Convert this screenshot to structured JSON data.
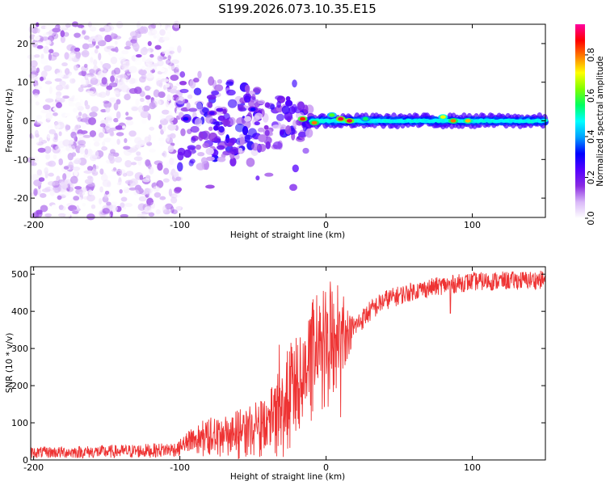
{
  "title": "S199.2026.073.10.35.E15",
  "chart_data": [
    {
      "type": "heatmap",
      "xlabel": "Height of straight line (km)",
      "ylabel": "Frequency (Hz)",
      "xlim": [
        -202,
        150
      ],
      "ylim": [
        -25,
        25
      ],
      "xticks": [
        -200,
        -100,
        0,
        100
      ],
      "xtick_labels": [
        "-200",
        "-100",
        "0",
        "100"
      ],
      "yticks": [
        -20,
        -10,
        0,
        10,
        20
      ],
      "ytick_labels": [
        "-20",
        "-10",
        "0",
        "10",
        "20"
      ],
      "colorbar": {
        "label": "Normalized spectral amplitude",
        "range": [
          0,
          0.95
        ],
        "ticks": [
          0,
          0.2,
          0.4,
          0.6,
          0.8
        ],
        "tick_labels": [
          "0.0",
          "0.2",
          "0.4",
          "0.6",
          "0.8"
        ],
        "colormap": [
          "#ffffff",
          "#d9b8f8",
          "#8a2be2",
          "#5500ff",
          "#0000ff",
          "#00a0ff",
          "#00ffff",
          "#00ff60",
          "#80ff00",
          "#ffff00",
          "#ff8000",
          "#ff0000",
          "#ff00a0"
        ]
      },
      "regions": [
        {
          "name": "scattered-noise",
          "x_range": [
            -202,
            -100
          ],
          "freq_range": [
            -25,
            25
          ],
          "amplitude_range": [
            0.0,
            0.15
          ]
        },
        {
          "name": "sparse-transition",
          "x_range": [
            -100,
            -10
          ],
          "freq_range": [
            -18,
            10
          ],
          "amplitude_range": [
            0.05,
            0.3
          ]
        },
        {
          "name": "tone-line",
          "x_range": [
            -10,
            150
          ],
          "freq_center": 0,
          "bandwidth_hz": 4,
          "amplitude_range": [
            0.3,
            0.9
          ]
        }
      ],
      "hotspots": [
        {
          "x": -96,
          "f": 0.5,
          "a": 0.3
        },
        {
          "x": -78,
          "f": 2,
          "a": 0.25
        },
        {
          "x": -50,
          "f": 3,
          "a": 0.3
        },
        {
          "x": -16,
          "f": 0.5,
          "a": 0.85
        },
        {
          "x": -8,
          "f": -0.5,
          "a": 0.8
        },
        {
          "x": 4,
          "f": 1.5,
          "a": 0.6
        },
        {
          "x": 10,
          "f": 0.5,
          "a": 0.9
        },
        {
          "x": 16,
          "f": 0,
          "a": 0.9
        },
        {
          "x": 27,
          "f": 0.5,
          "a": 0.55
        },
        {
          "x": 80,
          "f": 1,
          "a": 0.7
        },
        {
          "x": 87,
          "f": 0,
          "a": 0.8
        },
        {
          "x": 97,
          "f": 0,
          "a": 0.75
        }
      ]
    },
    {
      "type": "line",
      "xlabel": "Height of straight line (km)",
      "ylabel": "SNR (10 * v/v)",
      "xlim": [
        -202,
        150
      ],
      "ylim": [
        0,
        520
      ],
      "xticks": [
        -200,
        -100,
        0,
        100
      ],
      "xtick_labels": [
        "-200",
        "-100",
        "0",
        "100"
      ],
      "yticks": [
        0,
        100,
        200,
        300,
        400,
        500
      ],
      "ytick_labels": [
        "0",
        "100",
        "200",
        "300",
        "400",
        "500"
      ],
      "series": [
        {
          "name": "SNR",
          "color": "#ee3333",
          "baseline": {
            "x": [
              -202,
              -150,
              -120,
              -100,
              -90,
              -80,
              -60,
              -40,
              -30,
              -20,
              -10,
              0,
              10,
              20,
              30,
              40,
              60,
              80,
              100,
              120,
              150
            ],
            "y": [
              20,
              22,
              25,
              30,
              45,
              55,
              60,
              80,
              110,
              180,
              240,
              270,
              310,
              360,
              400,
              430,
              455,
              470,
              480,
              482,
              485
            ]
          },
          "noise_amplitude": {
            "x": [
              -202,
              -100,
              -90,
              -40,
              -30,
              -10,
              0,
              10,
              20,
              60,
              150
            ],
            "y": [
              15,
              20,
              40,
              70,
              120,
              150,
              160,
              90,
              30,
              25,
              25
            ]
          },
          "spikes": [
            {
              "x": -32,
              "y": 310
            },
            {
              "x": -12,
              "y": 375
            },
            {
              "x": -10,
              "y": 385
            },
            {
              "x": 3,
              "y": 480
            },
            {
              "x": 8,
              "y": 470
            },
            {
              "x": 10,
              "y": 115
            },
            {
              "x": 12,
              "y": 440
            },
            {
              "x": 85,
              "y": 395
            }
          ]
        }
      ]
    }
  ]
}
